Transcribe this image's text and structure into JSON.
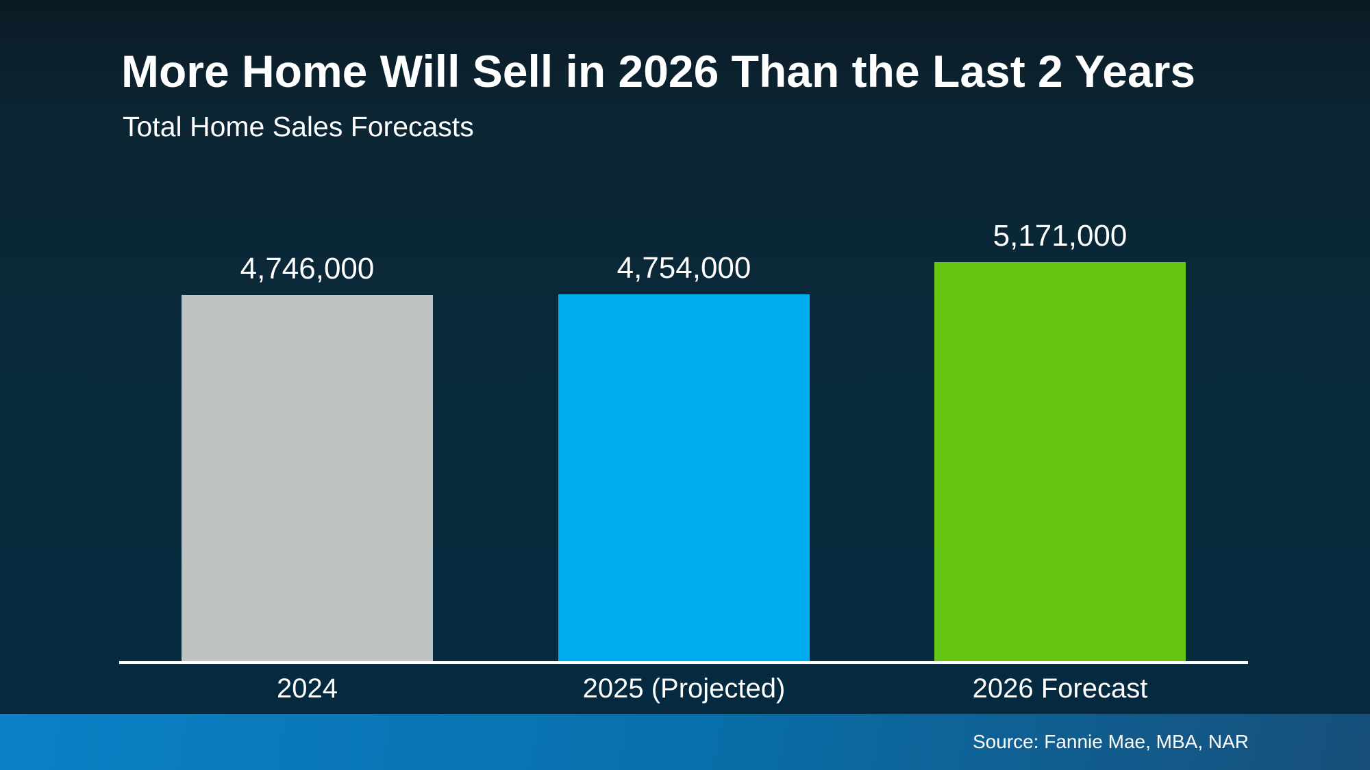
{
  "slide": {
    "title": "More Home Will Sell in 2026 Than the Last 2 Years",
    "subtitle": "Total Home Sales Forecasts",
    "source_text": "Source: Fannie Mae, MBA, NAR"
  },
  "chart_data": {
    "type": "bar",
    "title": "More Home Will Sell in 2026 Than the Last 2 Years",
    "subtitle": "Total Home Sales Forecasts",
    "categories": [
      "2024",
      "2025 (Projected)",
      "2026 Forecast"
    ],
    "values": [
      4746000,
      4754000,
      5171000
    ],
    "value_labels": [
      "4,746,000",
      "4,754,000",
      "5,171,000"
    ],
    "bar_colors": [
      "#bfc3c3",
      "#00aeef",
      "#67c514"
    ],
    "xlabel": "",
    "ylabel": "",
    "ylim": [
      0,
      5171000
    ],
    "grid": false,
    "legend": false,
    "source": "Source: Fannie Mae, MBA, NAR"
  },
  "colors": {
    "background_top": "#0a1a23",
    "background_bottom": "#052a3f",
    "footer_gradient_left": "#0b80c6",
    "footer_gradient_right": "#174f7a",
    "baseline": "#ffffff",
    "text": "#ffffff"
  }
}
